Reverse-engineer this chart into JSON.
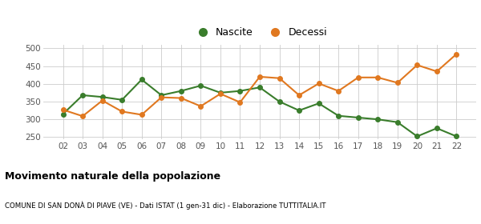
{
  "years": [
    "02",
    "03",
    "04",
    "05",
    "06",
    "07",
    "08",
    "09",
    "10",
    "11",
    "12",
    "13",
    "14",
    "15",
    "16",
    "17",
    "18",
    "19",
    "20",
    "21",
    "22"
  ],
  "nascite": [
    315,
    368,
    363,
    355,
    412,
    368,
    380,
    395,
    375,
    380,
    390,
    350,
    325,
    345,
    310,
    305,
    300,
    292,
    252,
    275,
    252
  ],
  "decessi": [
    327,
    309,
    353,
    322,
    313,
    362,
    360,
    337,
    372,
    348,
    420,
    416,
    368,
    401,
    380,
    418,
    418,
    403,
    453,
    435,
    484
  ],
  "nascite_color": "#3a7d2c",
  "decessi_color": "#e07820",
  "bg_color": "#ffffff",
  "grid_color": "#cccccc",
  "title": "Movimento naturale della popolazione",
  "subtitle": "COMUNE DI SAN DONÀ DI PIAVE (VE) - Dati ISTAT (1 gen-31 dic) - Elaborazione TUTTITALIA.IT",
  "legend_nascite": "Nascite",
  "legend_decessi": "Decessi",
  "ylim": [
    245,
    510
  ],
  "yticks": [
    250,
    300,
    350,
    400,
    450,
    500
  ]
}
